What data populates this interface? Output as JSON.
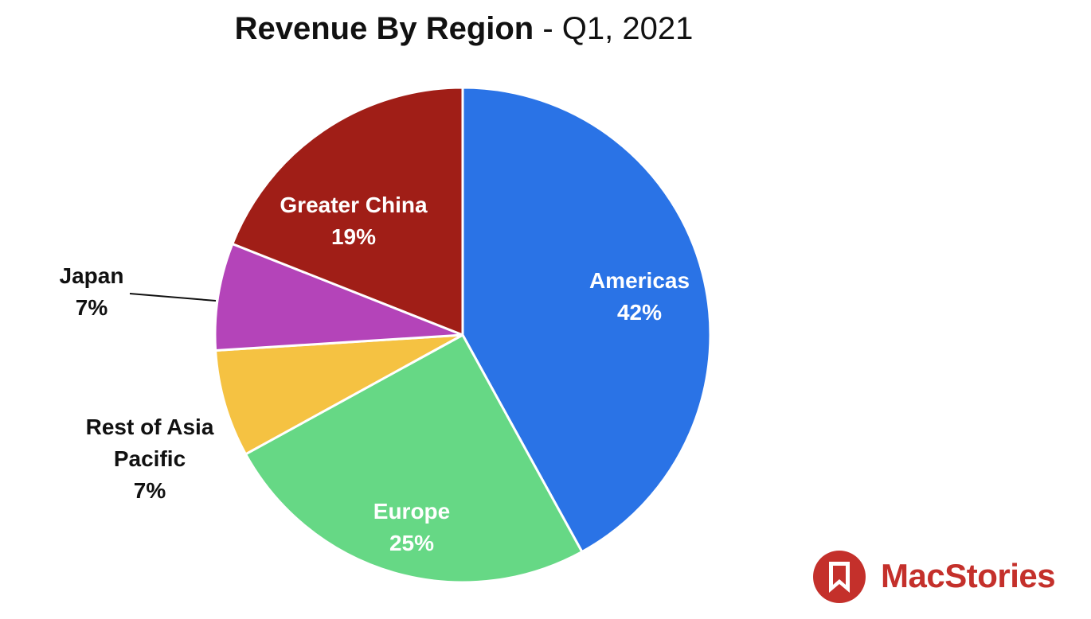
{
  "chart_data": {
    "type": "pie",
    "title": "Revenue By Region",
    "subtitle": "- Q1, 2021",
    "slices": [
      {
        "label": "Americas",
        "value_label": "42%",
        "value": 42,
        "color": "#2a73e6"
      },
      {
        "label": "Europe",
        "value_label": "25%",
        "value": 25,
        "color": "#66d885"
      },
      {
        "label": "Rest of Asia Pacific",
        "label_lines": [
          "Rest of Asia",
          "Pacific"
        ],
        "value_label": "7%",
        "value": 7,
        "color": "#f5c242"
      },
      {
        "label": "Japan",
        "value_label": "7%",
        "value": 7,
        "color": "#b444b9"
      },
      {
        "label": "Greater China",
        "value_label": "19%",
        "value": 19,
        "color": "#a01e17"
      }
    ],
    "legend": "none"
  },
  "brand": {
    "name": "MacStories",
    "color": "#c4302b",
    "icon": "bookmark-icon"
  }
}
